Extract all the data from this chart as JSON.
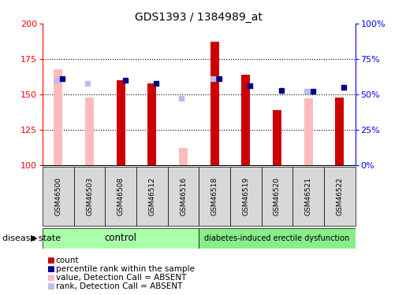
{
  "title": "GDS1393 / 1384989_at",
  "samples": [
    "GSM46500",
    "GSM46503",
    "GSM46508",
    "GSM46512",
    "GSM46516",
    "GSM46518",
    "GSM46519",
    "GSM46520",
    "GSM46521",
    "GSM46522"
  ],
  "ylim_left": [
    100,
    200
  ],
  "ylim_right": [
    0,
    100
  ],
  "yticks_left": [
    100,
    125,
    150,
    175,
    200
  ],
  "yticks_right": [
    0,
    25,
    50,
    75,
    100
  ],
  "yticklabels_right": [
    "0%",
    "25%",
    "50%",
    "75%",
    "100%"
  ],
  "red_bars": [
    null,
    null,
    160,
    158,
    null,
    187,
    164,
    139,
    null,
    148
  ],
  "pink_bars": [
    168,
    148,
    null,
    null,
    112,
    null,
    null,
    null,
    147,
    null
  ],
  "blue_squares": [
    161,
    null,
    160,
    158,
    null,
    161,
    156,
    153,
    152,
    155
  ],
  "lavender_squares": [
    160,
    158,
    null,
    null,
    147,
    161,
    null,
    null,
    152,
    null
  ],
  "control_indices": [
    0,
    1,
    2,
    3,
    4
  ],
  "disease_indices": [
    5,
    6,
    7,
    8,
    9
  ],
  "control_label": "control",
  "disease_label": "diabetes-induced erectile dysfunction",
  "disease_state_label": "disease state",
  "legend_items": [
    {
      "color": "#cc0000",
      "label": "count"
    },
    {
      "color": "#00008b",
      "label": "percentile rank within the sample"
    },
    {
      "color": "#ffbbbb",
      "label": "value, Detection Call = ABSENT"
    },
    {
      "color": "#bbbbee",
      "label": "rank, Detection Call = ABSENT"
    }
  ],
  "bar_width": 0.28,
  "blue_sq_size": 5,
  "lav_sq_size": 5,
  "control_color": "#aaffaa",
  "disease_color": "#88ee88",
  "group_box_color": "#d8d8d8",
  "background_color": "#ffffff"
}
